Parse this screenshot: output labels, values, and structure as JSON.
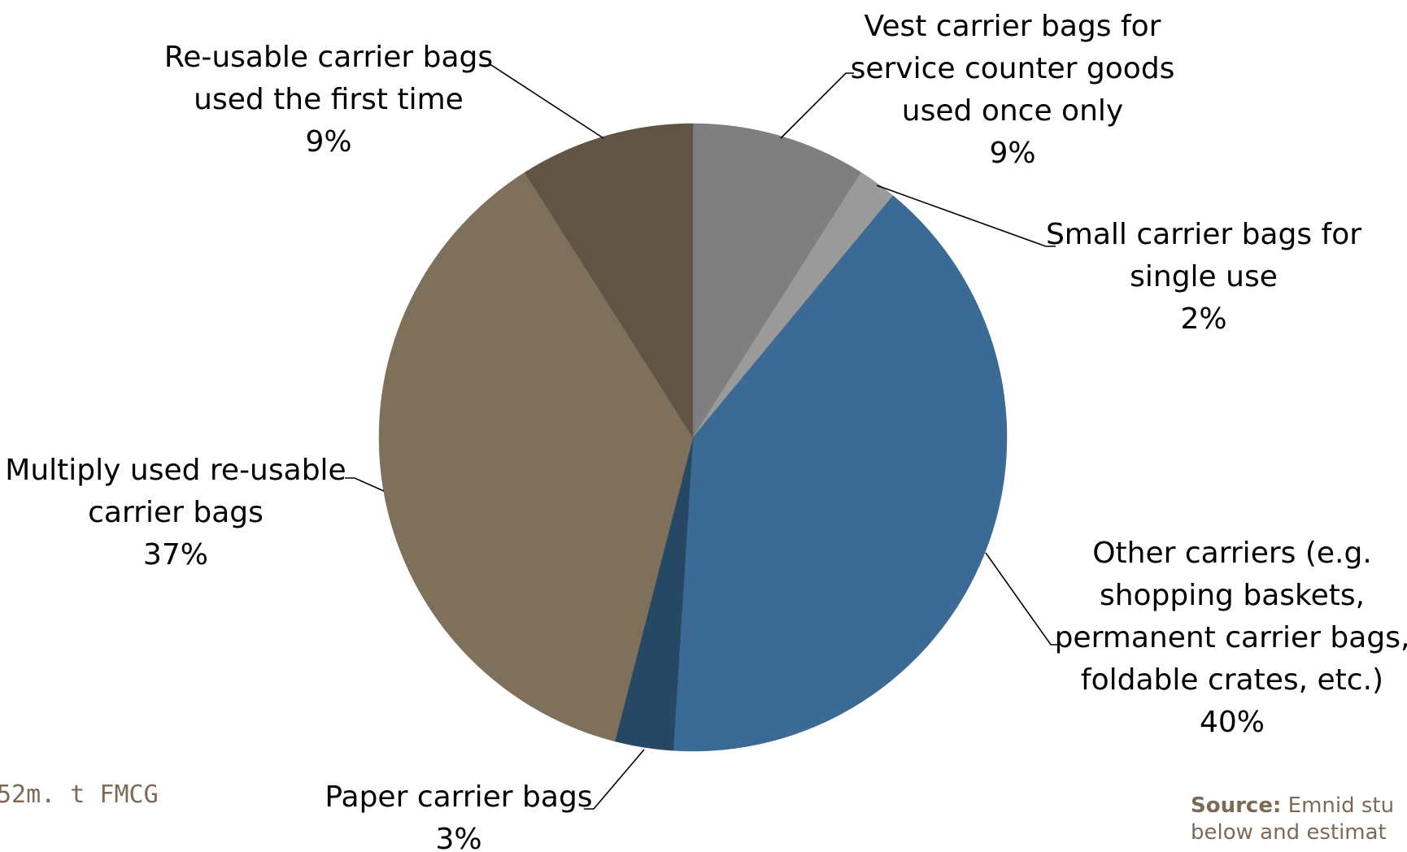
{
  "corner_note": "52m. t FMCG",
  "source": {
    "label": "Source:",
    "line1": "Emnid stu",
    "line2": "below and estimat"
  },
  "colors": {
    "leader": "#000000",
    "label": "#000000",
    "note": "#7d6a55"
  },
  "chart_data": {
    "type": "pie",
    "title": "",
    "start_angle_deg": 0,
    "direction": "clockwise",
    "slices": [
      {
        "label_lines": [
          "Vest carrier bags for",
          "service counter goods",
          "used once only"
        ],
        "value": 9,
        "value_label": "9%",
        "color": "#7f7f7f"
      },
      {
        "label_lines": [
          "Small carrier bags for",
          "single use"
        ],
        "value": 2,
        "value_label": "2%",
        "color": "#9a9a9a"
      },
      {
        "label_lines": [
          "Other carriers (e.g.",
          "shopping baskets,",
          "permanent carrier bags,",
          "foldable crates, etc.)"
        ],
        "value": 40,
        "value_label": "40%",
        "color": "#3b6b94"
      },
      {
        "label_lines": [
          "Paper carrier bags"
        ],
        "value": 3,
        "value_label": "3%",
        "color": "#264864"
      },
      {
        "label_lines": [
          "Multiply used re-usable",
          "carrier bags"
        ],
        "value": 37,
        "value_label": "37%",
        "color": "#7f705c"
      },
      {
        "label_lines": [
          "Re-usable carrier bags",
          "used the first time"
        ],
        "value": 9,
        "value_label": "9%",
        "color": "#615444"
      }
    ]
  }
}
